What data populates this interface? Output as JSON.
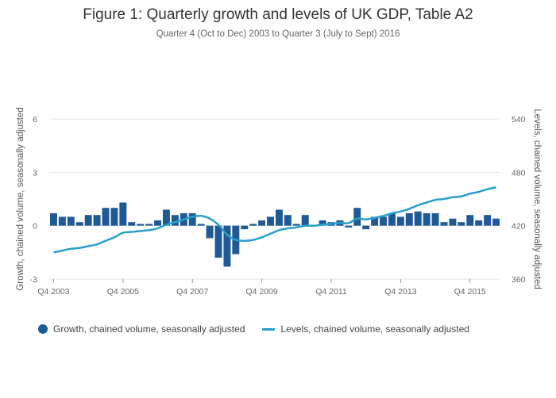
{
  "chart_data": {
    "type": "bar",
    "title": "Figure 1: Quarterly growth and levels of UK GDP, Table A2",
    "subtitle": "Quarter 4 (Oct to Dec) 2003 to Quarter 3 (July to Sept) 2016",
    "ylabel": "Growth, chained volume, seasonally adjusted",
    "y2label": "Levels, chained volume, seasonally adjusted",
    "ylim": [
      -3,
      6
    ],
    "y2lim": [
      360,
      540
    ],
    "yticks": [
      "-3",
      "0",
      "3",
      "6"
    ],
    "y2ticks": [
      "360",
      "420",
      "480",
      "540"
    ],
    "xticks": [
      "Q4 2003",
      "Q4 2005",
      "Q4 2007",
      "Q4 2009",
      "Q4 2011",
      "Q4 2013",
      "Q4 2015"
    ],
    "xtick_index": [
      0,
      8,
      16,
      24,
      32,
      40,
      48
    ],
    "grid": true,
    "legend_position": "bottom-left",
    "colors": {
      "bars": "#1f5a96",
      "line": "#27a0cc",
      "grid": "#e4e4e4"
    },
    "series": [
      {
        "name": "Growth, chained volume, seasonally adjusted",
        "kind": "bar",
        "axis": "left",
        "values": [
          0.7,
          0.5,
          0.5,
          0.2,
          0.6,
          0.6,
          1.0,
          1.0,
          1.3,
          0.2,
          0.1,
          0.1,
          0.3,
          0.9,
          0.6,
          0.7,
          0.7,
          0.1,
          -0.7,
          -1.8,
          -2.3,
          -1.6,
          -0.2,
          0.1,
          0.3,
          0.5,
          0.9,
          0.6,
          0.1,
          0.6,
          0.0,
          0.3,
          0.2,
          0.3,
          -0.1,
          1.0,
          -0.2,
          0.5,
          0.5,
          0.7,
          0.5,
          0.7,
          0.8,
          0.7,
          0.7,
          0.2,
          0.4,
          0.2,
          0.6,
          0.3,
          0.6,
          0.4
        ]
      },
      {
        "name": "Levels, chained volume, seasonally adjusted",
        "kind": "line",
        "axis": "right",
        "values": [
          390,
          392,
          394,
          395,
          397,
          399,
          403,
          407,
          412,
          413,
          414,
          415,
          417,
          421,
          424,
          427,
          430,
          431,
          428,
          421,
          410,
          404,
          403,
          404,
          407,
          411,
          415,
          417,
          418,
          420,
          420,
          421,
          422,
          423,
          423,
          428,
          427,
          429,
          431,
          434,
          436,
          439,
          443,
          446,
          449,
          450,
          452,
          453,
          456,
          458,
          461,
          463
        ]
      }
    ]
  }
}
